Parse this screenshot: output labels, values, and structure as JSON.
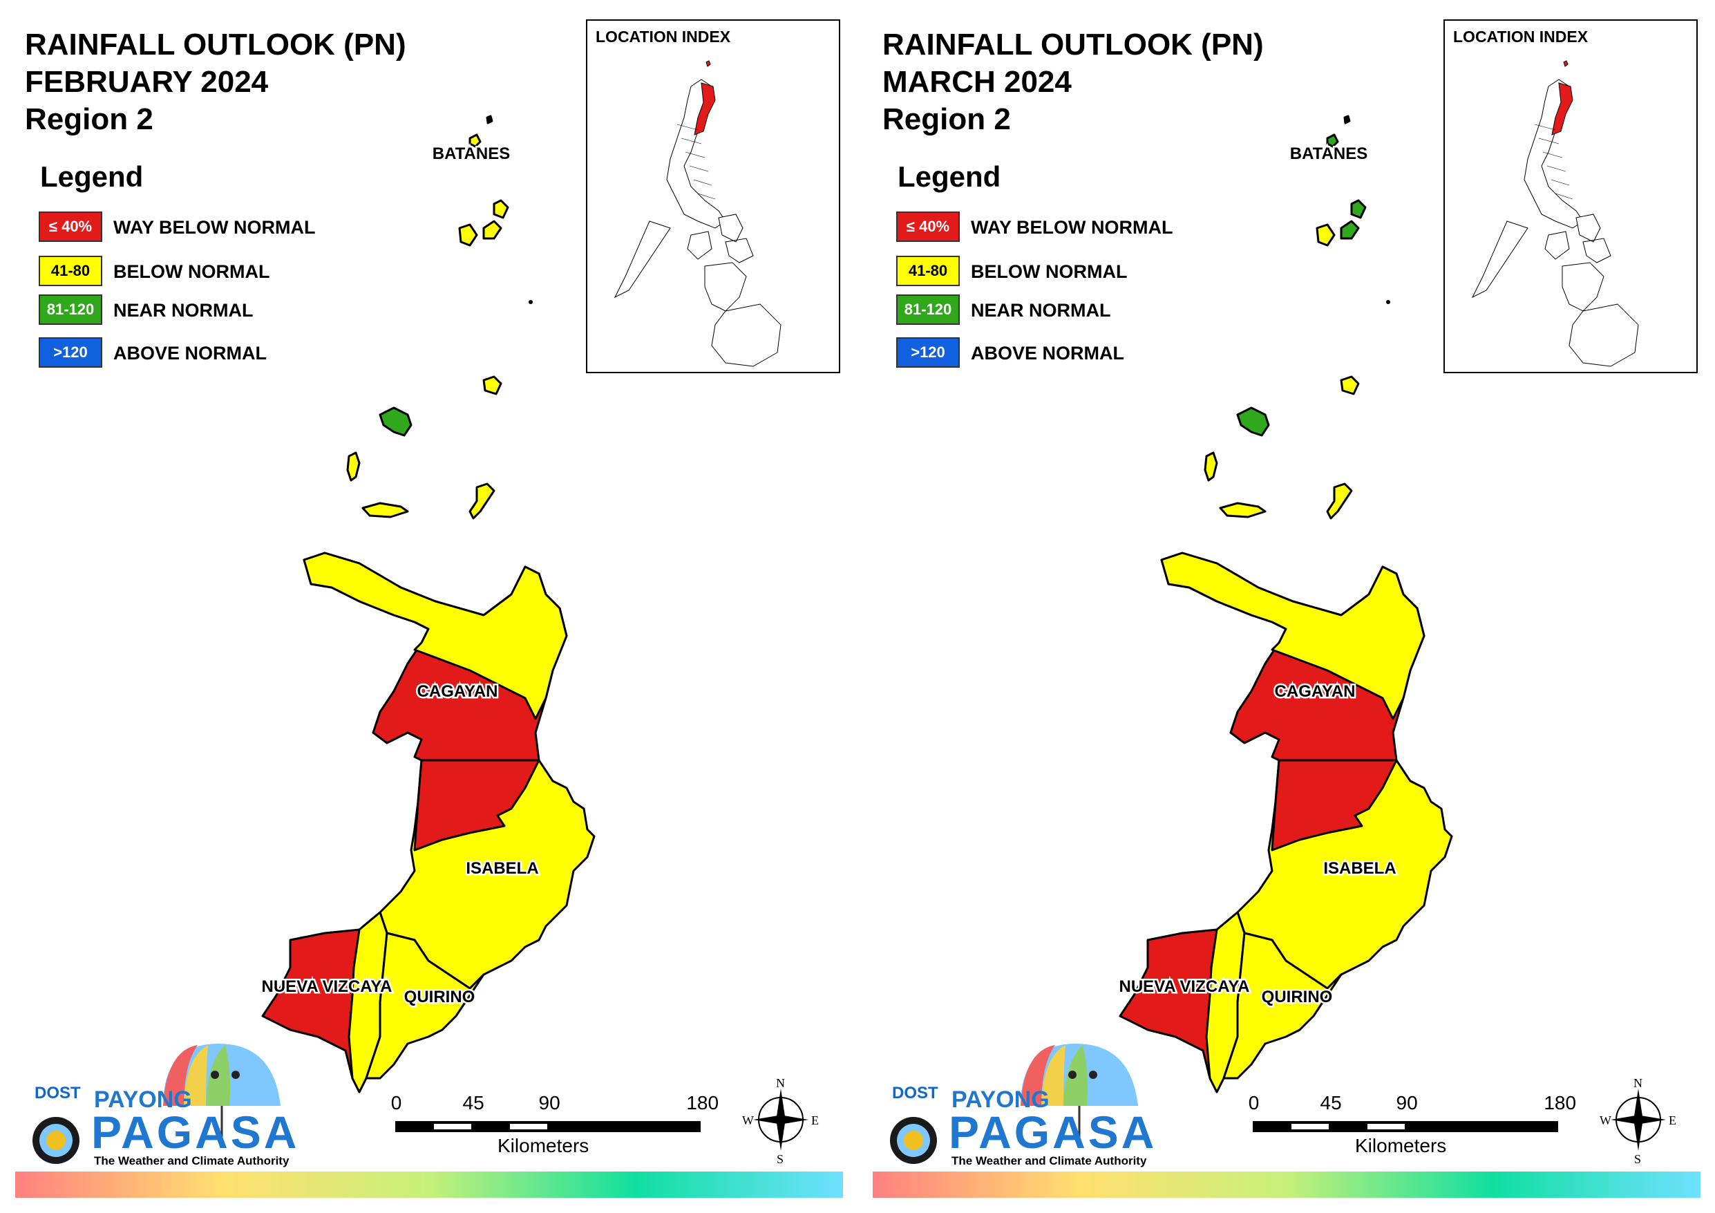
{
  "panels": [
    {
      "title_line1": "RAINFALL OUTLOOK (PN)",
      "title_line2": "FEBRUARY 2024",
      "title_line3": "Region 2",
      "legend_heading": "Legend",
      "legend": [
        {
          "swatch": "≤ 40%",
          "label": "WAY BELOW NORMAL",
          "color": "#e21a1a",
          "text_color": "#ffffff"
        },
        {
          "swatch": "41-80",
          "label": "BELOW NORMAL",
          "color": "#ffff00",
          "text_color": "#000000"
        },
        {
          "swatch": "81-120",
          "label": "NEAR NORMAL",
          "color": "#2fa81c",
          "text_color": "#ffffff"
        },
        {
          "swatch": ">120",
          "label": "ABOVE NORMAL",
          "color": "#1160e0",
          "text_color": "#ffffff"
        }
      ],
      "inset_title": "LOCATION INDEX",
      "province_labels": {
        "batanes": "BATANES",
        "cagayan": "CAGAYAN",
        "isabela": "ISABELA",
        "nueva_vizcaya": "NUEVA VIZCAYA",
        "quirino": "QUIRINO"
      },
      "scale_ticks": [
        "0",
        "45",
        "90",
        "180"
      ],
      "scale_unit": "Kilometers",
      "compass": {
        "n": "N",
        "s": "S",
        "e": "E",
        "w": "W"
      },
      "logo": {
        "dost": "DOST",
        "payong": "PAYONG",
        "pagasa": "PAGASA",
        "tagline": "The Weather and Climate Authority"
      },
      "map_colors": {
        "batanes_north": "#ffff00",
        "sabtang": "#ffff00",
        "calayan": "#2fa81c",
        "babuyan_others": "#ffff00",
        "cagayan_north_strip": "#ffff00",
        "cagayan_core": "#e21a1a",
        "isabela_north": "#e21a1a",
        "isabela_south": "#ffff00",
        "nueva_vizcaya_west": "#e21a1a",
        "nueva_vizcaya_east": "#ffff00",
        "quirino": "#ffff00"
      }
    },
    {
      "title_line1": "RAINFALL OUTLOOK (PN)",
      "title_line2": "MARCH 2024",
      "title_line3": "Region 2",
      "legend_heading": "Legend",
      "legend": [
        {
          "swatch": "≤ 40%",
          "label": "WAY BELOW NORMAL",
          "color": "#e21a1a",
          "text_color": "#ffffff"
        },
        {
          "swatch": "41-80",
          "label": "BELOW NORMAL",
          "color": "#ffff00",
          "text_color": "#000000"
        },
        {
          "swatch": "81-120",
          "label": "NEAR NORMAL",
          "color": "#2fa81c",
          "text_color": "#ffffff"
        },
        {
          "swatch": ">120",
          "label": "ABOVE NORMAL",
          "color": "#1160e0",
          "text_color": "#ffffff"
        }
      ],
      "inset_title": "LOCATION INDEX",
      "province_labels": {
        "batanes": "BATANES",
        "cagayan": "CAGAYAN",
        "isabela": "ISABELA",
        "nueva_vizcaya": "NUEVA VIZCAYA",
        "quirino": "QUIRINO"
      },
      "scale_ticks": [
        "0",
        "45",
        "90",
        "180"
      ],
      "scale_unit": "Kilometers",
      "compass": {
        "n": "N",
        "s": "S",
        "e": "E",
        "w": "W"
      },
      "logo": {
        "dost": "DOST",
        "payong": "PAYONG",
        "pagasa": "PAGASA",
        "tagline": "The Weather and Climate Authority"
      },
      "map_colors": {
        "batanes_north": "#2fa81c",
        "sabtang": "#ffff00",
        "calayan": "#2fa81c",
        "babuyan_others": "#ffff00",
        "cagayan_north_strip": "#ffff00",
        "cagayan_core": "#e21a1a",
        "isabela_north": "#e21a1a",
        "isabela_south": "#ffff00",
        "nueva_vizcaya_west": "#e21a1a",
        "nueva_vizcaya_east": "#ffff00",
        "quirino": "#ffff00"
      }
    }
  ]
}
